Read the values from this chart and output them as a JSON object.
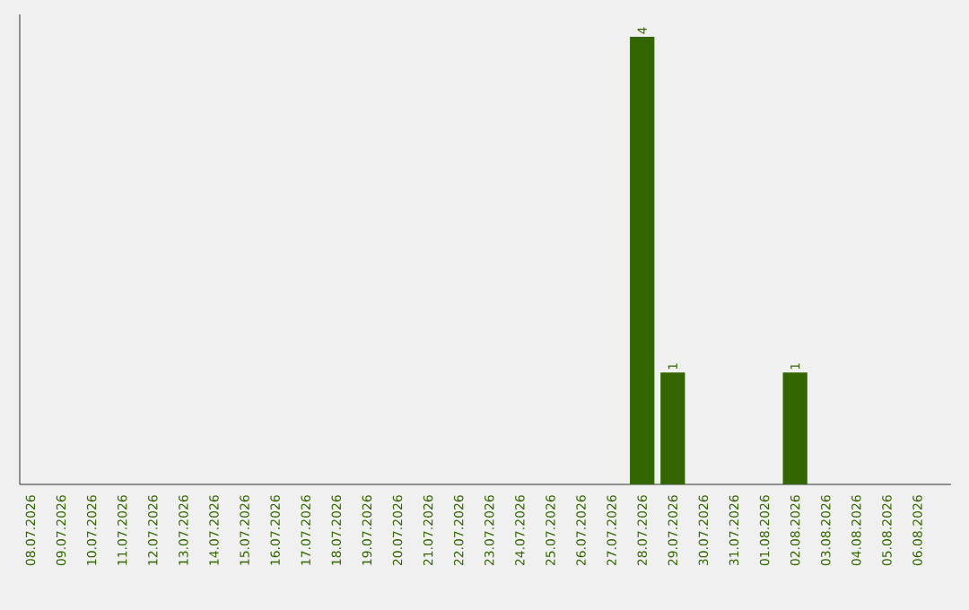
{
  "chart_data": {
    "type": "bar",
    "categories": [
      "08.07.2026",
      "09.07.2026",
      "10.07.2026",
      "11.07.2026",
      "12.07.2026",
      "13.07.2026",
      "14.07.2026",
      "15.07.2026",
      "16.07.2026",
      "17.07.2026",
      "18.07.2026",
      "19.07.2026",
      "20.07.2026",
      "21.07.2026",
      "22.07.2026",
      "23.07.2026",
      "24.07.2026",
      "25.07.2026",
      "26.07.2026",
      "27.07.2026",
      "28.07.2026",
      "29.07.2026",
      "30.07.2026",
      "31.07.2026",
      "01.08.2026",
      "02.08.2026",
      "03.08.2026",
      "04.08.2026",
      "05.08.2026",
      "06.08.2026"
    ],
    "values": [
      null,
      null,
      null,
      null,
      null,
      null,
      null,
      null,
      null,
      null,
      null,
      null,
      null,
      null,
      null,
      null,
      null,
      null,
      null,
      null,
      4,
      1,
      null,
      null,
      null,
      1,
      null,
      null,
      null,
      null
    ],
    "value_labels": [
      null,
      null,
      null,
      null,
      null,
      null,
      null,
      null,
      null,
      null,
      null,
      null,
      null,
      null,
      null,
      null,
      null,
      null,
      null,
      null,
      "4",
      "1",
      null,
      null,
      null,
      "1",
      null,
      null,
      null,
      null
    ],
    "color": "#336600"
  }
}
